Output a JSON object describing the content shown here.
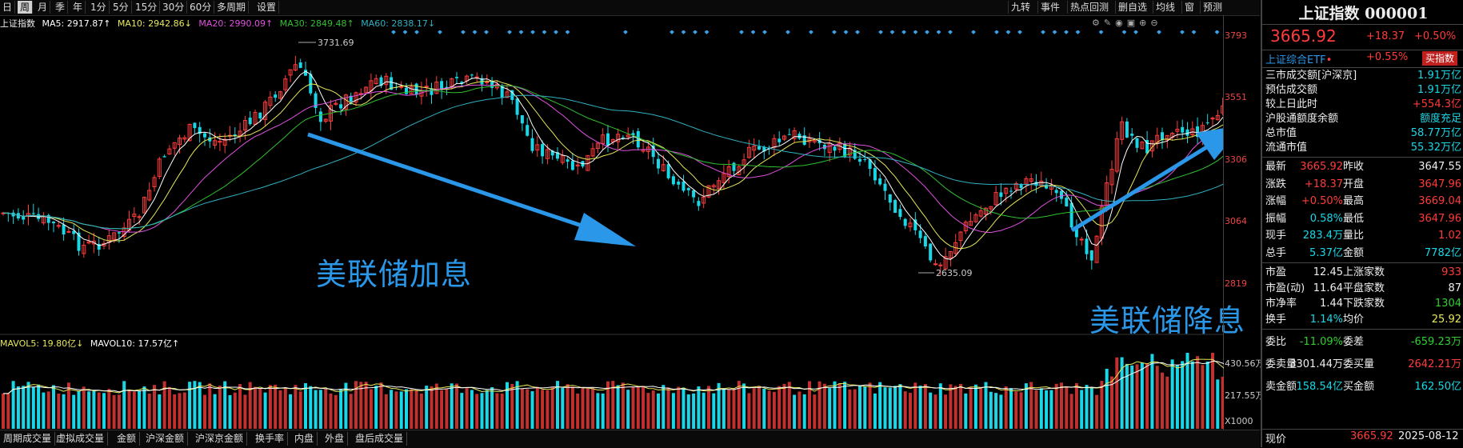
{
  "toolbar": {
    "left_items": [
      "日",
      "周",
      "月",
      "季",
      "年",
      "1分",
      "5分",
      "15分",
      "30分",
      "60分",
      "多周期",
      "设置"
    ],
    "active_index": 1,
    "right_items": [
      "九转",
      "事件",
      "热点回测",
      "删自选",
      "均线",
      "窗",
      "预测"
    ]
  },
  "chart_title": "上证指数",
  "ma_legend": {
    "ma5": "MA5: 2917.87↑",
    "ma10": "MA10: 2942.86↓",
    "ma20": "MA20: 2990.09↑",
    "ma30": "MA30: 2849.48↑",
    "ma60": "MA60: 2838.17↓"
  },
  "vol_legend": {
    "mavol5": "MAVOL5: 19.80亿↓",
    "mavol10": "MAVOL10: 17.57亿↑"
  },
  "price_axis": [
    "3793",
    "3551",
    "3306",
    "3064",
    "2819"
  ],
  "volume_axis": [
    "430.56万",
    "217.55万",
    "X1000"
  ],
  "high_label": "3731.69",
  "low_label": "2635.09",
  "annotations": {
    "hike": "美联储加息",
    "cut": "美联储降息"
  },
  "bottom_tabs": [
    "周期成交量",
    "虚拟成交量",
    "金额",
    "沪深金额",
    "沪深京金额",
    "换手率",
    "内盘",
    "外盘",
    "盘后成交量"
  ],
  "colors": {
    "up": "#ff3b3b",
    "down": "#19d7e6",
    "ma5": "#ffffff",
    "ma10": "#e8e85a",
    "ma20": "#e050e0",
    "ma30": "#30c030",
    "ma60": "#30b0c0",
    "arrow": "#2b97e8"
  },
  "panel": {
    "title": "上证指数 000001",
    "price": "3665.92",
    "change": "+18.37",
    "change_pct": "+0.50%",
    "etf_name": "上证综合ETF",
    "etf_change": "+0.55%",
    "buy_label": "买指数",
    "stats": [
      {
        "label": "三市成交额[沪深京]",
        "value": "1.91万亿"
      },
      {
        "label": "预估成交额",
        "value": "1.91万亿"
      },
      {
        "label": "较上日此时",
        "value": "+554.3亿"
      },
      {
        "label": "沪股通额度余额",
        "value": "额度充足"
      },
      {
        "label": "总市值",
        "value": "58.77万亿"
      },
      {
        "label": "流通市值",
        "value": "55.32万亿"
      }
    ],
    "quote": [
      {
        "l1": "最新",
        "v1": "3665.92",
        "l2": "昨收",
        "v2": "3647.55"
      },
      {
        "l1": "涨跌",
        "v1": "+18.37",
        "l2": "开盘",
        "v2": "3647.96"
      },
      {
        "l1": "涨幅",
        "v1": "+0.50%",
        "l2": "最高",
        "v2": "3669.04"
      },
      {
        "l1": "振幅",
        "v1": "0.58%",
        "l2": "最低",
        "v2": "3647.96"
      },
      {
        "l1": "现手",
        "v1": "283.4万",
        "l2": "量比",
        "v2": "1.02"
      },
      {
        "l1": "总手",
        "v1": "5.37亿",
        "l2": "金额",
        "v2": "7782亿"
      }
    ],
    "market": [
      {
        "l1": "市盈",
        "v1": "12.45",
        "l2": "上涨家数",
        "v2": "933"
      },
      {
        "l1": "市盈(动)",
        "v1": "11.64",
        "l2": "平盘家数",
        "v2": "87"
      },
      {
        "l1": "市净率",
        "v1": "1.44",
        "l2": "下跌家数",
        "v2": "1304"
      },
      {
        "l1": "换手",
        "v1": "1.14%",
        "l2": "均价",
        "v2": "25.92"
      }
    ],
    "order": [
      {
        "l1": "委比",
        "v1": "-11.09%",
        "l2": "委差",
        "v2": "-659.23万"
      },
      {
        "l1": "委卖量",
        "v1": "3301.44万",
        "l2": "委买量",
        "v2": "2642.21万"
      },
      {
        "l1": "卖金额",
        "v1": "158.54亿",
        "l2": "买金额",
        "v2": "162.50亿"
      }
    ],
    "footer_label": "现价",
    "footer_price": "3665.92",
    "footer_date": "2025-08-12"
  }
}
